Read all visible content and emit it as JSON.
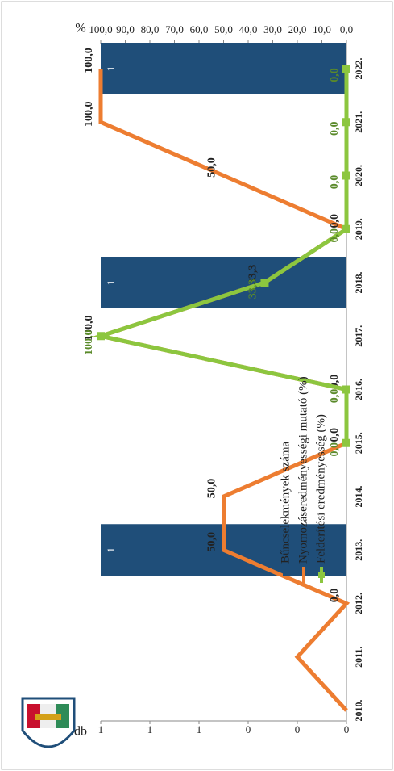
{
  "chart_data": {
    "type": "bar-line",
    "categories": [
      "2010.",
      "2011.",
      "2012.",
      "2013.",
      "2014.",
      "2015.",
      "2016.",
      "2017.",
      "2018.",
      "2019.",
      "2020.",
      "2021.",
      "2022."
    ],
    "series": [
      {
        "name": "Bűncselekmények száma",
        "type": "bar",
        "color": "#1f4e79",
        "values": [
          null,
          null,
          null,
          1,
          null,
          null,
          null,
          null,
          1,
          null,
          null,
          null,
          1
        ]
      },
      {
        "name": "Nyomozáseredményességi mutató (%)",
        "type": "line",
        "axis": "y2",
        "color": "#ed7d31",
        "values": [
          0,
          20,
          0,
          50,
          50,
          0,
          0,
          100,
          33.3,
          0,
          50,
          100,
          100
        ],
        "value_labels": [
          null,
          null,
          "0,0",
          "50,0",
          "50,0",
          "0,0",
          "0,0",
          "100,0",
          "33,3",
          "0,0",
          "50,0",
          "100,0",
          "100,0"
        ]
      },
      {
        "name": "Felderítési eredményesség (%)",
        "type": "line",
        "axis": "y2",
        "color": "#8cc63f",
        "values": [
          null,
          null,
          null,
          null,
          null,
          0,
          0,
          100,
          33.3,
          0,
          0,
          0,
          0
        ],
        "value_labels": [
          null,
          null,
          null,
          null,
          null,
          "0,0",
          "0,0",
          "100,0",
          "33,3",
          "0,0",
          "0,0",
          "0,0",
          "0,0"
        ]
      }
    ],
    "ylabel": "db",
    "ylim": [
      0,
      1
    ],
    "yticks": [
      {
        "value": 0,
        "label": "0"
      },
      {
        "value": 0.2,
        "label": "0"
      },
      {
        "value": 0.4,
        "label": "0"
      },
      {
        "value": 0.6,
        "label": "1"
      },
      {
        "value": 0.8,
        "label": "1"
      },
      {
        "value": 1,
        "label": "1"
      }
    ],
    "y2label": "%",
    "y2lim": [
      0,
      100
    ],
    "y2ticks": [
      {
        "value": 0,
        "label": "0,0"
      },
      {
        "value": 10,
        "label": "10,0"
      },
      {
        "value": 20,
        "label": "20,0"
      },
      {
        "value": 30,
        "label": "30,0"
      },
      {
        "value": 40,
        "label": "40,0"
      },
      {
        "value": 50,
        "label": "50,0"
      },
      {
        "value": 60,
        "label": "60,0"
      },
      {
        "value": 70,
        "label": "70,0"
      },
      {
        "value": 80,
        "label": "80,0"
      },
      {
        "value": 90,
        "label": "90,0"
      },
      {
        "value": 100,
        "label": "100,0"
      }
    ],
    "grid": false
  }
}
